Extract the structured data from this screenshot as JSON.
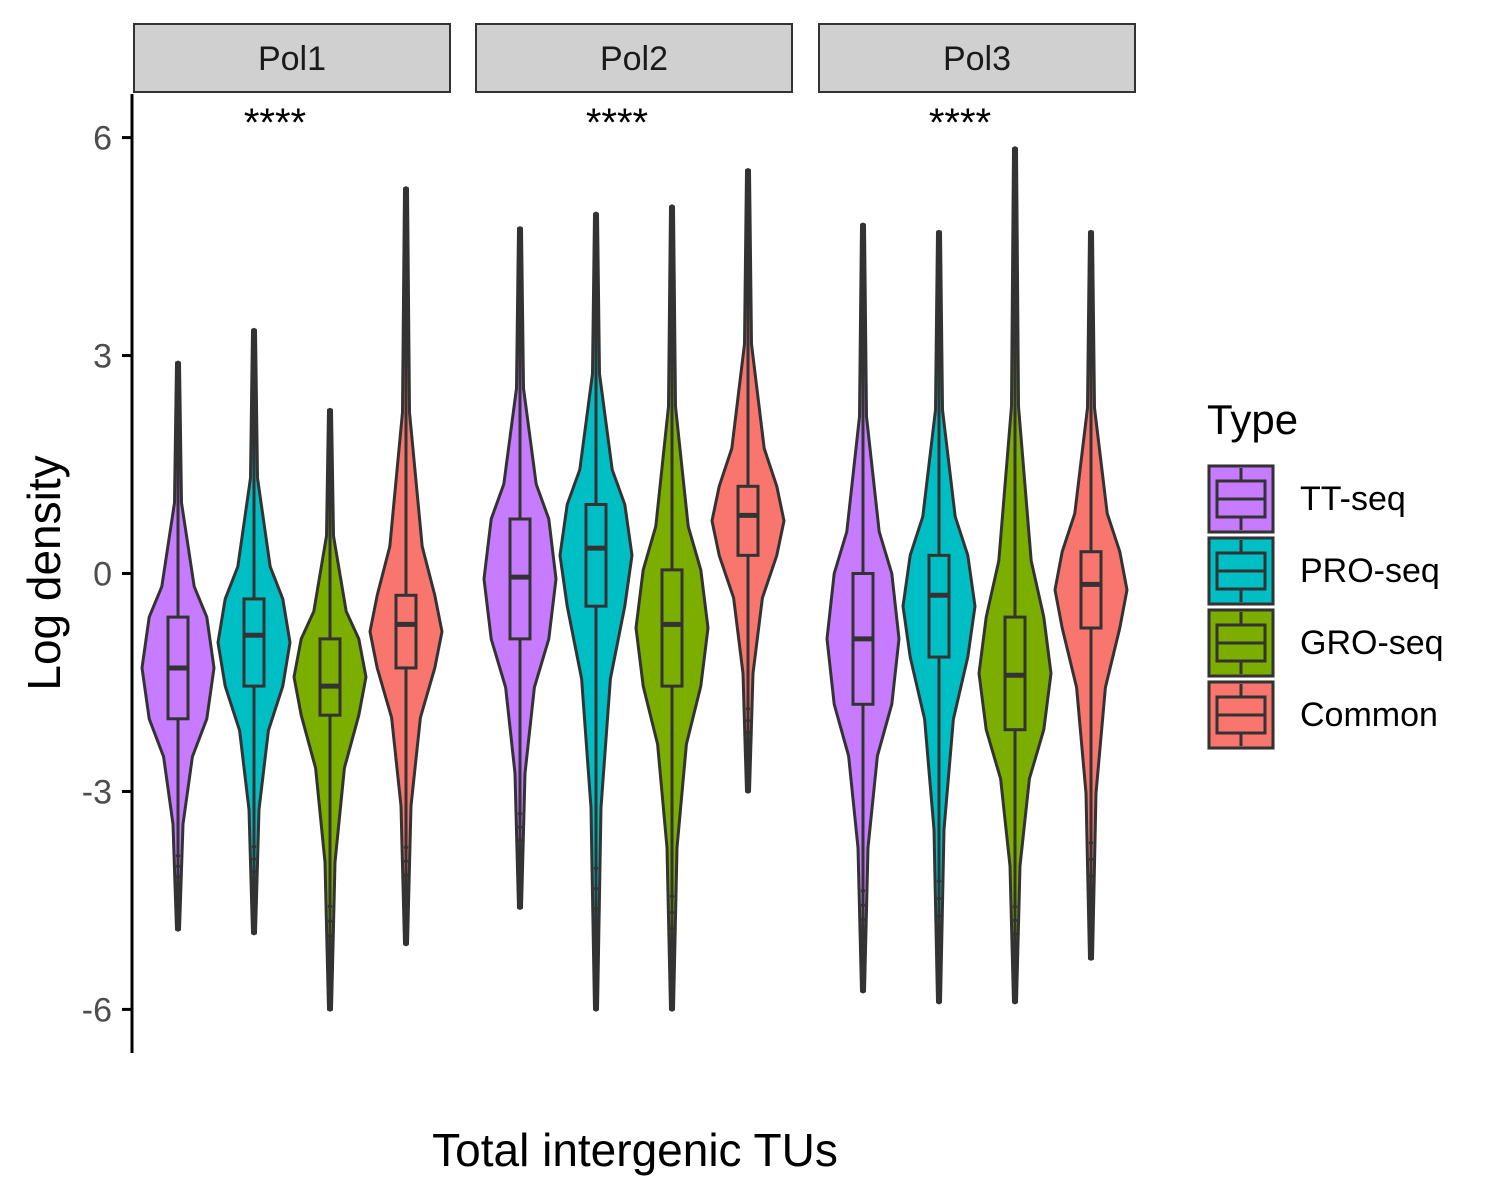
{
  "chart_data": {
    "type": "violin",
    "xlabel": "Total intergenic TUs",
    "ylabel": "Log density",
    "ylim": [
      -6.6,
      6.6
    ],
    "yticks": [
      6,
      3,
      0,
      -3,
      -6
    ],
    "ytick_labels": [
      "6",
      "3",
      "0",
      "-3",
      "-6"
    ],
    "grid": false,
    "legend": {
      "title": "Type",
      "placement": "right",
      "entries": [
        "TT-seq",
        "PRO-seq",
        "GRO-seq",
        "Common"
      ]
    },
    "colors": {
      "TT-seq": "#C77CFF",
      "PRO-seq": "#00BFC4",
      "GRO-seq": "#7CAE00",
      "Common": "#F8766D"
    },
    "panels": [
      {
        "name": "Pol1",
        "annotation": "****",
        "groups": [
          {
            "type": "TT-seq",
            "min": -4.9,
            "q1": -2.0,
            "median": -1.3,
            "q3": -0.6,
            "max": 2.9
          },
          {
            "type": "PRO-seq",
            "min": -4.95,
            "q1": -1.55,
            "median": -0.85,
            "q3": -0.35,
            "max": 3.35
          },
          {
            "type": "GRO-seq",
            "min": -6.0,
            "q1": -1.95,
            "median": -1.55,
            "q3": -0.9,
            "max": 2.25
          },
          {
            "type": "Common",
            "min": -5.1,
            "q1": -1.3,
            "median": -0.7,
            "q3": -0.3,
            "max": 5.3
          }
        ]
      },
      {
        "name": "Pol2",
        "annotation": "****",
        "groups": [
          {
            "type": "TT-seq",
            "min": -4.6,
            "q1": -0.9,
            "median": -0.05,
            "q3": 0.75,
            "max": 4.75
          },
          {
            "type": "PRO-seq",
            "min": -6.0,
            "q1": -0.45,
            "median": 0.35,
            "q3": 0.95,
            "max": 4.95
          },
          {
            "type": "GRO-seq",
            "min": -6.0,
            "q1": -1.55,
            "median": -0.7,
            "q3": 0.05,
            "max": 5.05
          },
          {
            "type": "Common",
            "min": -3.0,
            "q1": 0.25,
            "median": 0.8,
            "q3": 1.2,
            "max": 5.55
          }
        ]
      },
      {
        "name": "Pol3",
        "annotation": "****",
        "groups": [
          {
            "type": "TT-seq",
            "min": -5.75,
            "q1": -1.8,
            "median": -0.9,
            "q3": 0.0,
            "max": 4.8
          },
          {
            "type": "PRO-seq",
            "min": -5.9,
            "q1": -1.15,
            "median": -0.3,
            "q3": 0.25,
            "max": 4.7
          },
          {
            "type": "GRO-seq",
            "min": -5.9,
            "q1": -2.15,
            "median": -1.4,
            "q3": -0.6,
            "max": 5.85
          },
          {
            "type": "Common",
            "min": -5.3,
            "q1": -0.75,
            "median": -0.15,
            "q3": 0.3,
            "max": 4.7
          }
        ]
      }
    ]
  }
}
